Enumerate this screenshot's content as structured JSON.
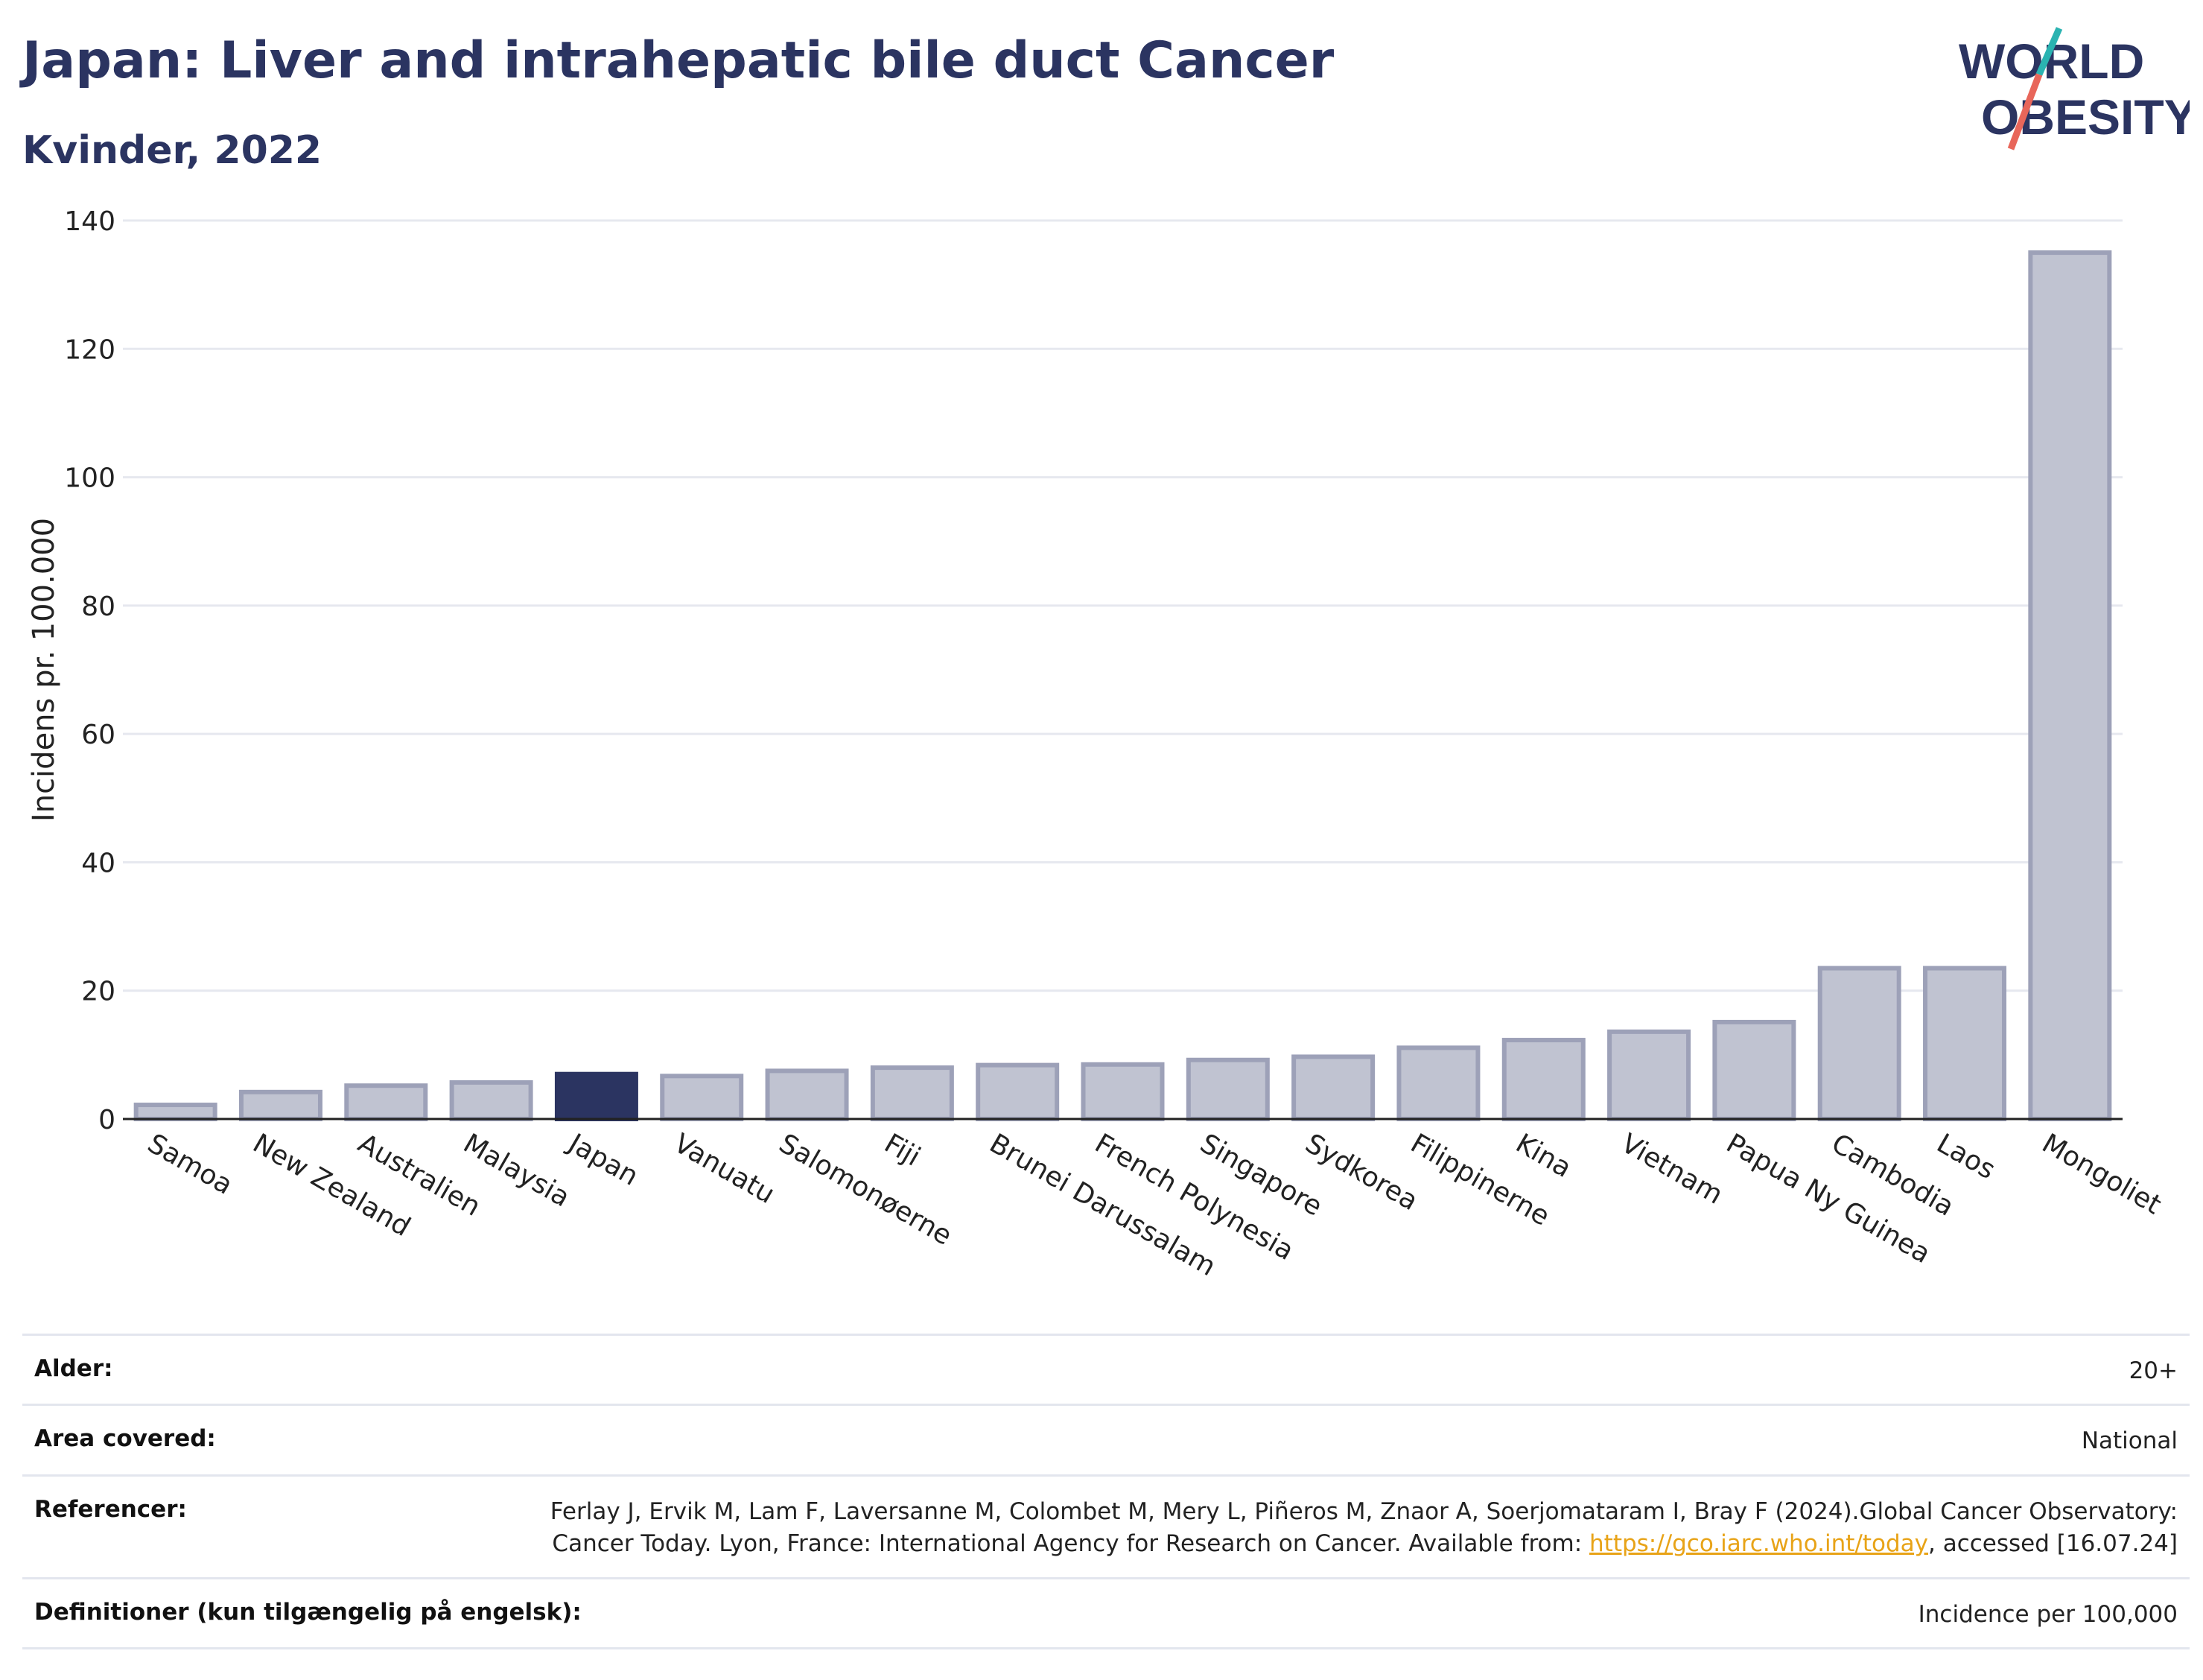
{
  "header": {
    "title": "Japan: Liver and intrahepatic bile duct Cancer",
    "subtitle": "Kvinder, 2022"
  },
  "logo": {
    "line1": "WORLD",
    "line2": "OBESITY",
    "colors": {
      "text": "#2b3461",
      "slash_teal": "#2ab3b1",
      "slash_red": "#e8665a"
    }
  },
  "chart_data": {
    "type": "bar",
    "ylabel": "Incidens pr. 100.000",
    "ylim": [
      0,
      140
    ],
    "yticks": [
      0,
      20,
      40,
      60,
      80,
      100,
      120,
      140
    ],
    "categories": [
      "Samoa",
      "New Zealand",
      "Australien",
      "Malaysia",
      "Japan",
      "Vanuatu",
      "Salomonøerne",
      "Fiji",
      "Brunei Darussalam",
      "French Polynesia",
      "Singapore",
      "Sydkorea",
      "Filippinerne",
      "Kina",
      "Vietnam",
      "Papua Ny Guinea",
      "Cambodia",
      "Laos",
      "Mongoliet"
    ],
    "values": [
      2.2,
      4.2,
      5.2,
      5.7,
      7.0,
      6.7,
      7.5,
      8.0,
      8.4,
      8.5,
      9.2,
      9.7,
      11.1,
      12.3,
      13.6,
      15.1,
      23.5,
      23.5,
      135.0
    ],
    "highlight": "Japan",
    "grid": true,
    "colors": {
      "bar": "#c0c3d1",
      "bar_edge": "#9da1b8",
      "highlight": "#2b3461",
      "grid": "#e6e8ef"
    }
  },
  "meta": {
    "rows": [
      {
        "label": "Alder:",
        "value": "20+"
      },
      {
        "label": "Area covered:",
        "value": "National"
      },
      {
        "label": "Referencer:",
        "value_pre": "Ferlay J, Ervik M, Lam F, Laversanne M, Colombet M, Mery L, Piñeros M, Znaor A, Soerjomataram I, Bray F (2024).Global Cancer Observatory: Cancer Today. Lyon, France: International Agency for Research on Cancer. Available from: ",
        "link": "https://gco.iarc.who.int/today",
        "value_post": ", accessed [16.07.24]"
      },
      {
        "label": "Definitioner (kun tilgængelig på engelsk):",
        "value": "Incidence per 100,000"
      }
    ]
  }
}
